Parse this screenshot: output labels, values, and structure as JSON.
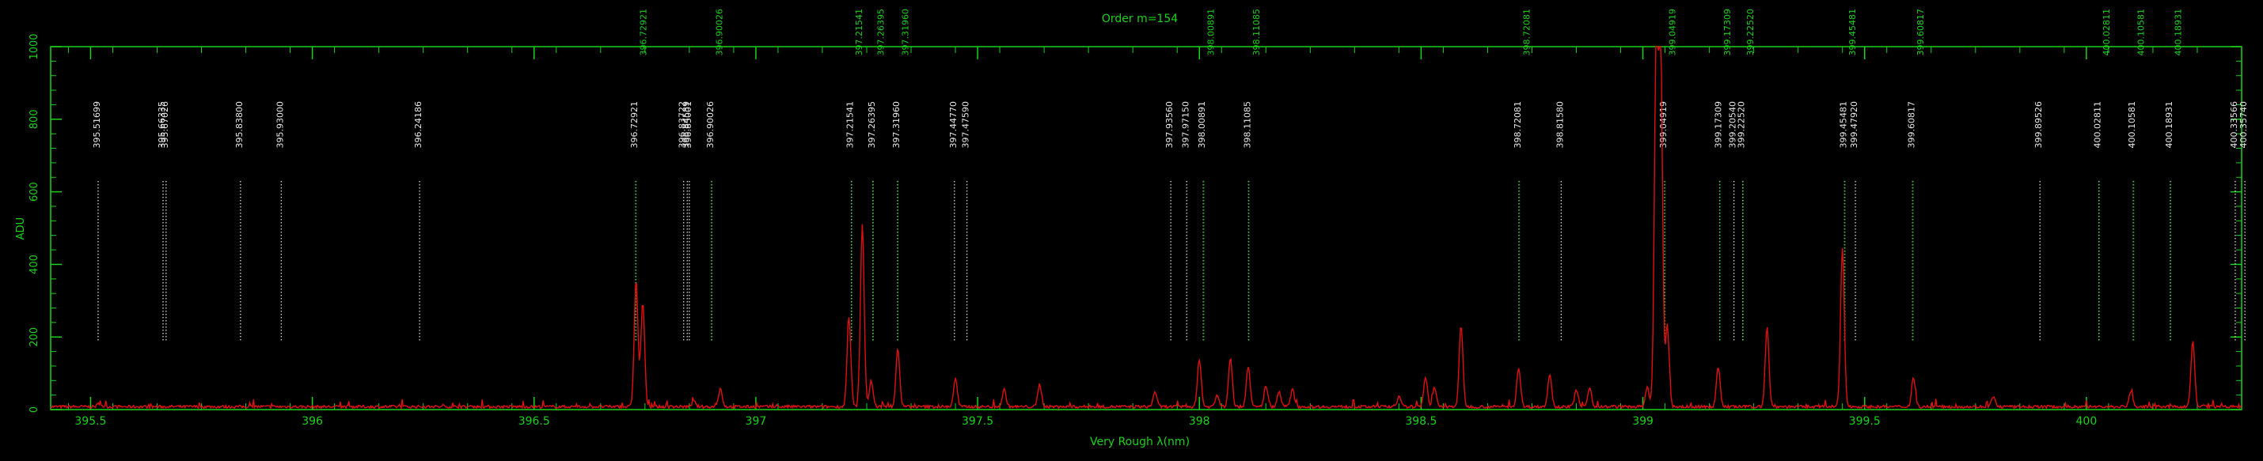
{
  "chart_data": {
    "type": "line",
    "title": "Order m=154",
    "xlabel": "Very Rough λ(nm)",
    "ylabel": "ADU",
    "xlim": [
      395.41,
      400.35
    ],
    "ylim": [
      0,
      1000
    ],
    "x_ticks": [
      395.5,
      396,
      396.5,
      397,
      397.5,
      398,
      398.5,
      399,
      399.5,
      400
    ],
    "y_ticks": [
      0,
      200,
      400,
      600,
      800,
      1000
    ],
    "grid": false,
    "legend": "none",
    "colors": {
      "axis": "#19d219",
      "spectrum": "#e01010",
      "marker_white": "#e0e0e0",
      "marker_green": "#19b819"
    },
    "baseline_adu": 8,
    "series": [
      {
        "peaks": [
          {
            "x": 395.52,
            "y": 18
          },
          {
            "x": 396.73,
            "y": 355
          },
          {
            "x": 396.745,
            "y": 295
          },
          {
            "x": 396.86,
            "y": 22
          },
          {
            "x": 396.92,
            "y": 58
          },
          {
            "x": 397.21,
            "y": 255
          },
          {
            "x": 397.24,
            "y": 510
          },
          {
            "x": 397.26,
            "y": 80
          },
          {
            "x": 397.32,
            "y": 168
          },
          {
            "x": 397.45,
            "y": 85
          },
          {
            "x": 397.56,
            "y": 55
          },
          {
            "x": 397.64,
            "y": 70
          },
          {
            "x": 397.9,
            "y": 50
          },
          {
            "x": 398.0,
            "y": 140
          },
          {
            "x": 398.04,
            "y": 40
          },
          {
            "x": 398.07,
            "y": 142
          },
          {
            "x": 398.11,
            "y": 120
          },
          {
            "x": 398.15,
            "y": 65
          },
          {
            "x": 398.18,
            "y": 50
          },
          {
            "x": 398.21,
            "y": 55
          },
          {
            "x": 398.45,
            "y": 35
          },
          {
            "x": 398.51,
            "y": 90
          },
          {
            "x": 398.53,
            "y": 60
          },
          {
            "x": 398.59,
            "y": 230
          },
          {
            "x": 398.72,
            "y": 115
          },
          {
            "x": 398.79,
            "y": 100
          },
          {
            "x": 398.85,
            "y": 55
          },
          {
            "x": 398.88,
            "y": 62
          },
          {
            "x": 399.01,
            "y": 60
          },
          {
            "x": 399.03,
            "y": 1000
          },
          {
            "x": 399.04,
            "y": 1000
          },
          {
            "x": 399.055,
            "y": 235
          },
          {
            "x": 399.17,
            "y": 118
          },
          {
            "x": 399.28,
            "y": 225
          },
          {
            "x": 399.45,
            "y": 445
          },
          {
            "x": 399.61,
            "y": 88
          },
          {
            "x": 399.79,
            "y": 35
          },
          {
            "x": 400.1,
            "y": 50
          },
          {
            "x": 400.24,
            "y": 190
          }
        ]
      }
    ],
    "lines": [
      {
        "x": 395.51699,
        "label": "395.51699",
        "hl": false
      },
      {
        "x": 395.66335,
        "label": "395.66335",
        "hl": false
      },
      {
        "x": 395.67026,
        "label": "395.67026",
        "hl": false
      },
      {
        "x": 395.838,
        "label": "395.83800",
        "hl": false
      },
      {
        "x": 395.93,
        "label": "395.93000",
        "hl": false
      },
      {
        "x": 396.24186,
        "label": "396.24186",
        "hl": false
      },
      {
        "x": 396.72921,
        "label": "396.72921",
        "hl": false
      },
      {
        "x": 396.72921,
        "label": "396.72921",
        "hl": true
      },
      {
        "x": 396.83722,
        "label": "396.83722",
        "hl": false
      },
      {
        "x": 396.84539,
        "label": "396.84539",
        "hl": false
      },
      {
        "x": 396.85001,
        "label": "396.85001",
        "hl": false
      },
      {
        "x": 396.90026,
        "label": "396.90026",
        "hl": false
      },
      {
        "x": 396.90026,
        "label": "396.90026",
        "hl": true
      },
      {
        "x": 397.21541,
        "label": "397.21541",
        "hl": false
      },
      {
        "x": 397.21541,
        "label": "397.21541",
        "hl": true
      },
      {
        "x": 397.26395,
        "label": "397.26395",
        "hl": false
      },
      {
        "x": 397.26395,
        "label": "397.26395",
        "hl": true
      },
      {
        "x": 397.3196,
        "label": "397.31960",
        "hl": false
      },
      {
        "x": 397.3196,
        "label": "397.31960",
        "hl": true
      },
      {
        "x": 397.4477,
        "label": "397.44770",
        "hl": false
      },
      {
        "x": 397.4759,
        "label": "397.47590",
        "hl": false
      },
      {
        "x": 397.9356,
        "label": "397.93560",
        "hl": false
      },
      {
        "x": 397.9715,
        "label": "397.97150",
        "hl": false
      },
      {
        "x": 398.00891,
        "label": "398.00891",
        "hl": false
      },
      {
        "x": 398.00891,
        "label": "398.00891",
        "hl": true
      },
      {
        "x": 398.11085,
        "label": "398.11085",
        "hl": false
      },
      {
        "x": 398.11085,
        "label": "398.11085",
        "hl": true
      },
      {
        "x": 398.72081,
        "label": "398.72081",
        "hl": false
      },
      {
        "x": 398.72081,
        "label": "398.72081",
        "hl": true
      },
      {
        "x": 398.8158,
        "label": "398.81580",
        "hl": false
      },
      {
        "x": 399.04919,
        "label": "399.04919",
        "hl": false
      },
      {
        "x": 399.04919,
        "label": "399.04919",
        "hl": true
      },
      {
        "x": 399.17309,
        "label": "399.17309",
        "hl": false
      },
      {
        "x": 399.17309,
        "label": "399.17309",
        "hl": true
      },
      {
        "x": 399.2054,
        "label": "399.20540",
        "hl": false
      },
      {
        "x": 399.2252,
        "label": "399.22520",
        "hl": false
      },
      {
        "x": 399.2252,
        "label": "399.22520",
        "hl": true
      },
      {
        "x": 399.45481,
        "label": "399.45481",
        "hl": false
      },
      {
        "x": 399.45481,
        "label": "399.45481",
        "hl": true
      },
      {
        "x": 399.4792,
        "label": "399.47920",
        "hl": false
      },
      {
        "x": 399.60817,
        "label": "399.60817",
        "hl": false
      },
      {
        "x": 399.60817,
        "label": "399.60817",
        "hl": true
      },
      {
        "x": 399.89526,
        "label": "399.89526",
        "hl": false
      },
      {
        "x": 400.02811,
        "label": "400.02811",
        "hl": false
      },
      {
        "x": 400.02811,
        "label": "400.02811",
        "hl": true
      },
      {
        "x": 400.10581,
        "label": "400.10581",
        "hl": false
      },
      {
        "x": 400.10581,
        "label": "400.10581",
        "hl": true
      },
      {
        "x": 400.18931,
        "label": "400.18931",
        "hl": false
      },
      {
        "x": 400.18931,
        "label": "400.18931",
        "hl": true
      },
      {
        "x": 400.33566,
        "label": "400.33566",
        "hl": false
      },
      {
        "x": 400.3574,
        "label": "400.35740",
        "hl": false
      }
    ]
  }
}
